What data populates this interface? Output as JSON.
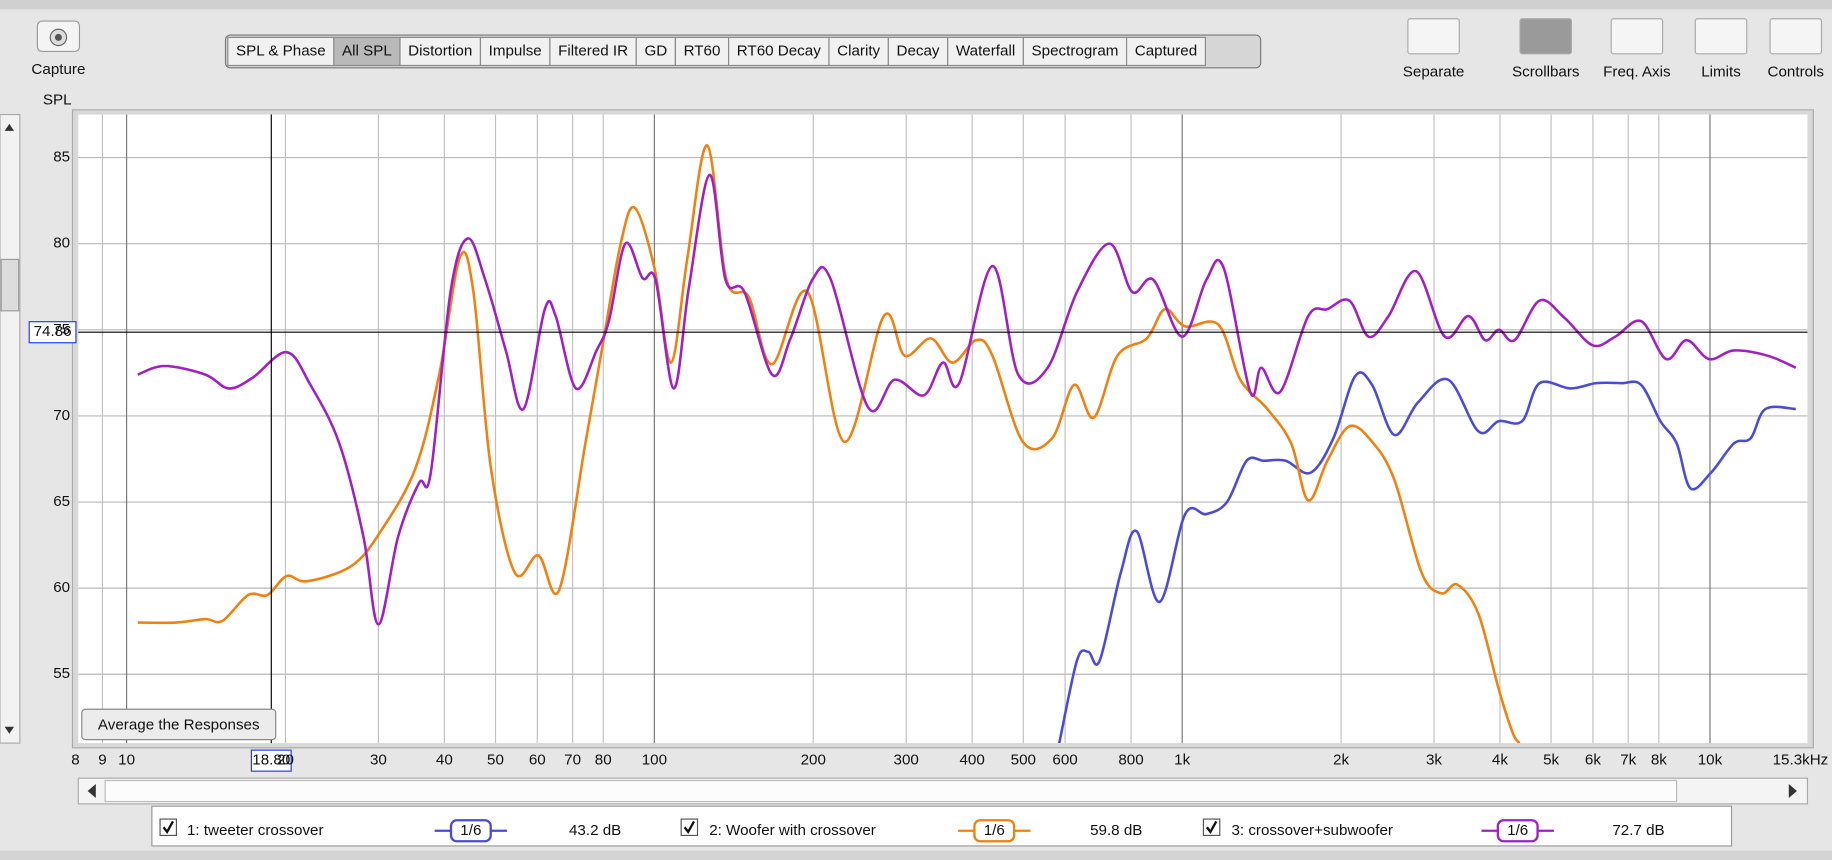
{
  "toolbar": {
    "capture": "Capture",
    "tabs": [
      "SPL & Phase",
      "All SPL",
      "Distortion",
      "Impulse",
      "Filtered IR",
      "GD",
      "RT60",
      "RT60 Decay",
      "Clarity",
      "Decay",
      "Waterfall",
      "Spectrogram",
      "Captured"
    ],
    "selected_tab": 1,
    "tools": [
      "Separate",
      "Scrollbars",
      "Freq. Axis",
      "Limits",
      "Controls"
    ]
  },
  "average_button": "Average the Responses",
  "chart_data": {
    "type": "line",
    "y_label": "SPL",
    "xscale": "log",
    "xlim": [
      8.1,
      15300
    ],
    "ylim": [
      51,
      87.5
    ],
    "grid": true,
    "xticks": [
      8,
      9,
      10,
      20,
      30,
      40,
      50,
      60,
      70,
      80,
      100,
      200,
      300,
      400,
      500,
      600,
      800,
      {
        "value": 1000,
        "label": "1k"
      },
      {
        "value": 2000,
        "label": "2k"
      },
      {
        "value": 3000,
        "label": "3k"
      },
      {
        "value": 4000,
        "label": "4k"
      },
      {
        "value": 5000,
        "label": "5k"
      },
      {
        "value": 6000,
        "label": "6k"
      },
      {
        "value": 7000,
        "label": "7k"
      },
      {
        "value": 8000,
        "label": "8k"
      },
      {
        "value": 10000,
        "label": "10k"
      },
      {
        "value": 15300,
        "label": "15.3kHz"
      }
    ],
    "yticks": [
      55,
      60,
      65,
      70,
      75,
      80,
      85
    ],
    "cursor": {
      "x": {
        "value": 18.8,
        "label": "18.80"
      },
      "y": 74.86
    },
    "series": [
      {
        "name": "1: tweeter crossover",
        "color": "#4b4bd6",
        "smoothing": "1/6",
        "level": "43.2 dB",
        "x": [
          585,
          632,
          664,
          698,
          765,
          820,
          906,
          1013,
          1111,
          1216,
          1325,
          1427,
          1571,
          1750,
          1934,
          2126,
          2290,
          2523,
          2800,
          3193,
          3641,
          3982,
          4407,
          4754,
          5440,
          6090,
          6787,
          7406,
          8054,
          8648,
          9180,
          10040,
          11100,
          11940,
          12740,
          14540
        ],
        "values": [
          51.0,
          55.8,
          56.3,
          55.8,
          60.9,
          63.3,
          59.2,
          64.3,
          64.3,
          65.0,
          67.4,
          67.4,
          67.4,
          66.7,
          68.7,
          72.3,
          71.8,
          68.9,
          70.8,
          72.1,
          69.1,
          69.7,
          69.7,
          71.9,
          71.6,
          71.9,
          71.9,
          71.8,
          69.7,
          68.4,
          65.8,
          66.7,
          68.4,
          68.7,
          70.4,
          70.4
        ]
      },
      {
        "name": "2: Woofer with crossover",
        "color": "#f08010",
        "smoothing": "1/6",
        "level": "59.8 dB",
        "x": [
          10.5,
          12.4,
          14.1,
          15.2,
          17.0,
          18.5,
          20.1,
          22.0,
          26.7,
          30.3,
          35.3,
          39.1,
          42.8,
          45.4,
          49.0,
          54.4,
          60.3,
          66.0,
          74.0,
          79.8,
          86.2,
          91.7,
          100,
          107.5,
          115.5,
          126,
          137,
          151,
          167,
          195,
          229,
          272,
          298,
          334,
          367,
          407,
          437,
          499,
          567,
          624,
          680,
          754,
          857,
          927,
          1013,
          1171,
          1289,
          1450,
          1609,
          1733,
          1884,
          2074,
          2290,
          2523,
          2842,
          3097,
          3322,
          3641,
          3982,
          4228,
          4354
        ],
        "values": [
          58.0,
          58.0,
          58.2,
          58.1,
          59.6,
          59.6,
          60.7,
          60.4,
          61.3,
          63.3,
          67.0,
          72.4,
          79.2,
          77.2,
          67.0,
          60.9,
          61.9,
          59.9,
          68.4,
          74.1,
          79.9,
          82.1,
          78.6,
          73.1,
          79.2,
          85.7,
          77.9,
          76.9,
          73.0,
          77.2,
          68.5,
          75.8,
          73.5,
          74.5,
          73.1,
          74.4,
          73.5,
          68.5,
          68.7,
          71.8,
          69.9,
          73.5,
          74.5,
          76.2,
          75.2,
          75.3,
          72.1,
          70.4,
          68.4,
          65.1,
          67.4,
          69.4,
          68.5,
          66.3,
          60.9,
          59.7,
          60.2,
          58.5,
          54.1,
          51.6,
          51.0
        ]
      },
      {
        "name": "3: crossover+subwoofer",
        "color": "#a020c4",
        "smoothing": "1/6",
        "level": "72.7 dB",
        "x": [
          10.5,
          11.8,
          14.1,
          15.6,
          17.3,
          20.1,
          22.3,
          25.3,
          28.1,
          30,
          32.7,
          35.8,
          37.7,
          41.1,
          44.3,
          47.8,
          52.3,
          56.5,
          62.0,
          65.0,
          71.0,
          77.7,
          82.0,
          88.1,
          95.0,
          100.5,
          108.8,
          116.3,
          127.3,
          136.4,
          148.1,
          167.1,
          181.1,
          200,
          216,
          254,
          285,
          324,
          352,
          378,
          437,
          489,
          556,
          632,
          728,
          804,
          882,
          1000,
          1111,
          1198,
          1345,
          1412,
          1534,
          1733,
          1884,
          2074,
          2255,
          2460,
          2774,
          3144,
          3484,
          3749,
          3982,
          4266,
          4754,
          5300,
          5993,
          6617,
          7406,
          8256,
          9030,
          9960,
          11100,
          12860,
          14540
        ],
        "values": [
          72.4,
          72.9,
          72.4,
          71.6,
          72.2,
          73.7,
          71.8,
          68.4,
          63.0,
          57.9,
          63.0,
          66.1,
          66.7,
          77.2,
          80.3,
          77.9,
          73.8,
          70.4,
          76.2,
          75.8,
          71.6,
          73.8,
          75.5,
          80.0,
          78.0,
          77.9,
          71.6,
          77.5,
          84.0,
          77.9,
          77.2,
          72.4,
          74.5,
          78.0,
          77.9,
          70.5,
          72.1,
          71.2,
          73.1,
          71.9,
          78.7,
          72.4,
          72.8,
          77.2,
          80.0,
          77.2,
          77.9,
          74.6,
          77.9,
          78.6,
          71.4,
          72.8,
          71.4,
          75.8,
          76.2,
          76.7,
          74.6,
          75.8,
          78.4,
          74.6,
          75.8,
          74.4,
          75.0,
          74.4,
          76.7,
          75.7,
          74.1,
          74.6,
          75.5,
          73.3,
          74.4,
          73.3,
          73.8,
          73.5,
          72.8
        ]
      }
    ]
  }
}
